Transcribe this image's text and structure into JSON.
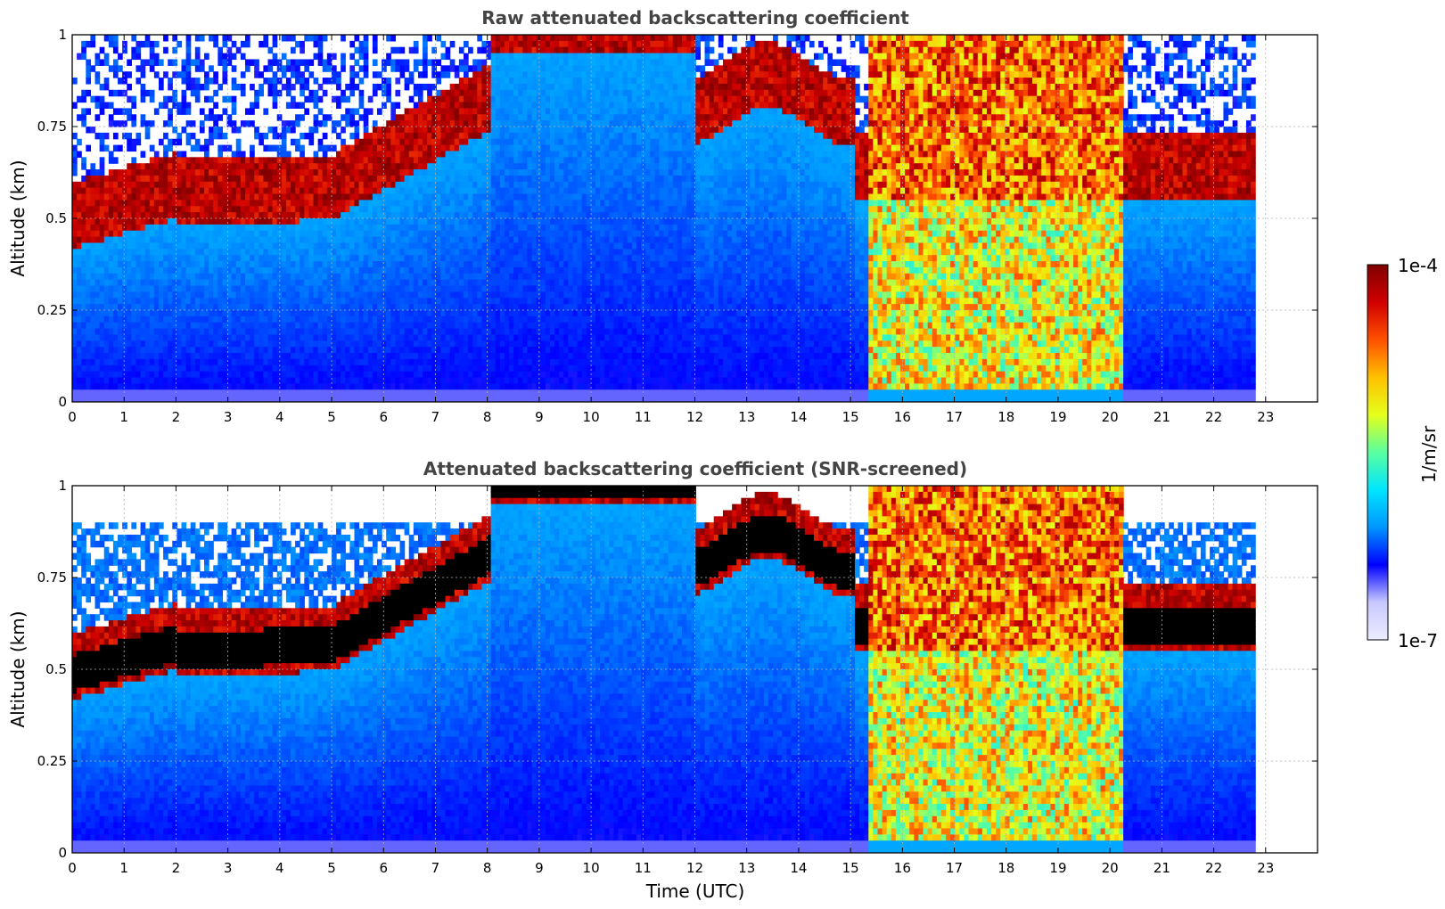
{
  "chart_data": [
    {
      "type": "heatmap",
      "title": "Raw attenuated backscattering coefficient",
      "xlabel": "",
      "ylabel": "Altitude (km)",
      "xlim": [
        0,
        24
      ],
      "ylim": [
        0,
        1
      ],
      "x_ticks": [
        "0",
        "1",
        "2",
        "3",
        "4",
        "5",
        "6",
        "7",
        "8",
        "9",
        "10",
        "11",
        "12",
        "13",
        "14",
        "15",
        "16",
        "17",
        "18",
        "19",
        "20",
        "21",
        "22",
        "23"
      ],
      "y_ticks": [
        "0",
        "0.25",
        "0.5",
        "0.75",
        "1"
      ],
      "grid": true,
      "data_end_time": 22.8,
      "screened": false
    },
    {
      "type": "heatmap",
      "title": "Attenuated backscattering coefficient (SNR-screened)",
      "xlabel": "Time (UTC)",
      "ylabel": "Altitude (km)",
      "xlim": [
        0,
        24
      ],
      "ylim": [
        0,
        1
      ],
      "x_ticks": [
        "0",
        "1",
        "2",
        "3",
        "4",
        "5",
        "6",
        "7",
        "8",
        "9",
        "10",
        "11",
        "12",
        "13",
        "14",
        "15",
        "16",
        "17",
        "18",
        "19",
        "20",
        "21",
        "22",
        "23"
      ],
      "y_ticks": [
        "0",
        "0.25",
        "0.5",
        "0.75",
        "1"
      ],
      "grid": true,
      "data_end_time": 22.8,
      "screened": true
    }
  ],
  "colorbar": {
    "label": "1/m/sr",
    "max_label": "1e-4",
    "min_label": "1e-7",
    "scale": "log",
    "colormap": "jet",
    "colors": [
      "#ececff",
      "#c8c8ff",
      "#0000ff",
      "#0096ff",
      "#00e5ff",
      "#5aff9f",
      "#e5ff1a",
      "#ffc000",
      "#ff5000",
      "#d00000",
      "#800000"
    ]
  }
}
